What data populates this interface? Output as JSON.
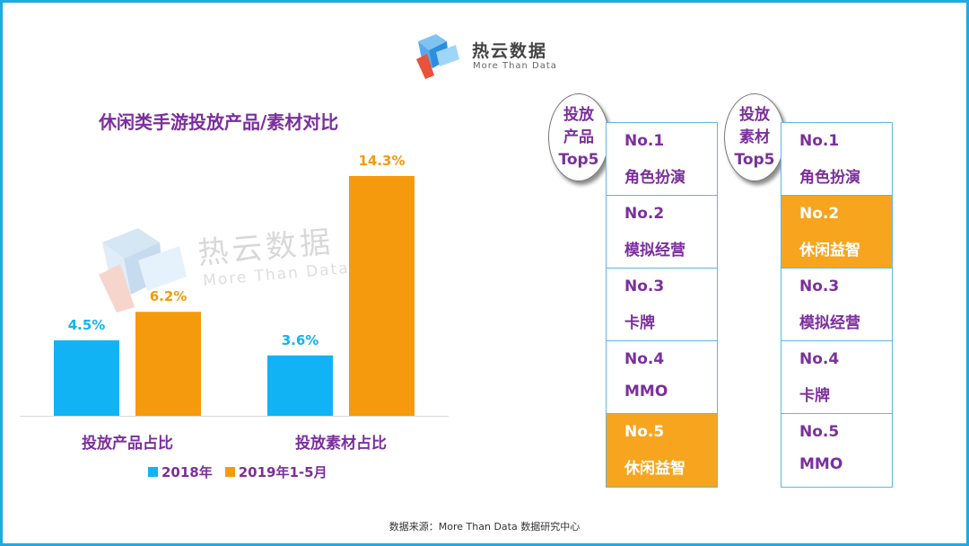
{
  "logo": {
    "name": "热云数据",
    "subtitle": "More Than Data"
  },
  "chart_data": {
    "type": "bar",
    "title": "休闲类手游投放产品/素材对比",
    "categories": [
      "投放产品占比",
      "投放素材占比"
    ],
    "series": [
      {
        "name": "2018年",
        "values": [
          4.5,
          3.6
        ],
        "labels": [
          "4.5%",
          "3.6%"
        ],
        "color": "#11b3f5"
      },
      {
        "name": "2019年1-5月",
        "values": [
          6.2,
          14.3
        ],
        "labels": [
          "6.2%",
          "14.3%"
        ],
        "color": "#f59a0c"
      }
    ],
    "ylim": [
      0,
      15
    ],
    "grid": false,
    "legend": "bottom",
    "xlabel": "",
    "ylabel": ""
  },
  "watermark": {
    "name": "热云数据",
    "subtitle": "More Than Data"
  },
  "product_ranking": {
    "label": [
      "投放",
      "产品",
      "Top5"
    ],
    "items": [
      {
        "rank": "No.1",
        "name": "角色扮演",
        "highlight": false
      },
      {
        "rank": "No.2",
        "name": "模拟经营",
        "highlight": false
      },
      {
        "rank": "No.3",
        "name": "卡牌",
        "highlight": false
      },
      {
        "rank": "No.4",
        "name": "MMO",
        "highlight": false
      },
      {
        "rank": "No.5",
        "name": "休闲益智",
        "highlight": true
      }
    ]
  },
  "material_ranking": {
    "label": [
      "投放",
      "素材",
      "Top5"
    ],
    "items": [
      {
        "rank": "No.1",
        "name": "角色扮演",
        "highlight": false
      },
      {
        "rank": "No.2",
        "name": "休闲益智",
        "highlight": true
      },
      {
        "rank": "No.3",
        "name": "模拟经营",
        "highlight": false
      },
      {
        "rank": "No.4",
        "name": "卡牌",
        "highlight": false
      },
      {
        "rank": "No.5",
        "name": "MMO",
        "highlight": false
      }
    ]
  },
  "colors": {
    "frame": "#1fa9e2",
    "title": "#7b2f9c",
    "highlight": "#f7a51f",
    "border": "#5bb8e8"
  },
  "source": "数据来源：More Than Data 数据研究中心"
}
